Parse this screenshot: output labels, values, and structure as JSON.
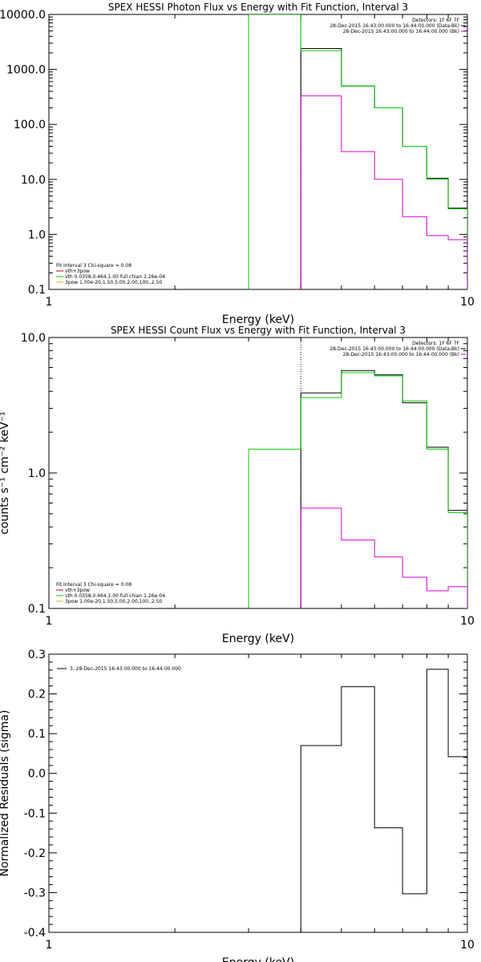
{
  "chart_data": [
    {
      "type": "line",
      "title": "SPEX HESSI Photon Flux vs Energy with Fit Function, Interval 3",
      "xlabel": "Energy (keV)",
      "ylabel": "",
      "x_scale": "log",
      "y_scale": "log",
      "xlim": [
        1,
        10
      ],
      "ylim": [
        0.1,
        10000
      ],
      "x_ticks": [
        "1",
        "10"
      ],
      "y_ticks": [
        "0.1",
        "1.0",
        "10.0",
        "100.0",
        "1000.0",
        "10000.0"
      ],
      "legend_top": [
        "Detectors: 1F 6F 7F",
        "28-Dec-2015 16:43:00.000 to 16:44:00.000 (Data-Bk)",
        "28-Dec-2015 16:43:00.000 to 16:44:00.000 (Bk)"
      ],
      "legend_bottom": [
        "Fit Interval 3   Chi-square = 0.08",
        "vth+3pow",
        "vth 0.0358,0.464,1.00  full chian 1.26e-04",
        "3pow 1.00e-20,1.50,5.00,2.00,100.,2.50"
      ],
      "series": [
        {
          "color": "#000000",
          "bins": [
            [
              4.0,
              5.0,
              2400
            ],
            [
              5.0,
              6.0,
              500
            ],
            [
              6.0,
              7.0,
              200
            ],
            [
              7.0,
              8.0,
              40
            ],
            [
              8.0,
              9.0,
              10.5
            ],
            [
              9.0,
              10.0,
              3.0
            ]
          ]
        },
        {
          "color": "#00cc00",
          "bins": [
            [
              3.0,
              4.0,
              10000
            ],
            [
              4.0,
              5.0,
              2200
            ],
            [
              5.0,
              6.0,
              500
            ],
            [
              6.0,
              7.0,
              200
            ],
            [
              7.0,
              8.0,
              40
            ],
            [
              8.0,
              9.0,
              10
            ],
            [
              9.0,
              10.0,
              2.9
            ]
          ]
        },
        {
          "color": "#dd00dd",
          "bins": [
            [
              4.0,
              5.0,
              330
            ],
            [
              5.0,
              6.0,
              32
            ],
            [
              6.0,
              7.0,
              10
            ],
            [
              7.0,
              8.0,
              2.1
            ],
            [
              8.0,
              9.0,
              0.95
            ],
            [
              9.0,
              10.0,
              0.8
            ]
          ]
        }
      ],
      "dotted_x": 4.0
    },
    {
      "type": "line",
      "title": "SPEX HESSI Count Flux vs Energy with Fit Function, Interval 3",
      "xlabel": "Energy (keV)",
      "ylabel": "counts s⁻¹ cm⁻² keV⁻¹",
      "x_scale": "log",
      "y_scale": "log",
      "xlim": [
        1,
        10
      ],
      "ylim": [
        0.1,
        10
      ],
      "x_ticks": [
        "1",
        "10"
      ],
      "y_ticks": [
        "0.1",
        "1.0",
        "10.0"
      ],
      "legend_top": [
        "Detectors: 1F 6F 7F",
        "28-Dec-2015 16:43:00.000 to 16:44:00.000 (Data-Bk)",
        "28-Dec-2015 16:43:00.000 to 16:44:00.000 (Bk)"
      ],
      "legend_bottom": [
        "Fit Interval 3   Chi-square = 0.08",
        "vth+3pow",
        "vth 0.0358,0.464,1.00  full chian 1.26e-04",
        "3pow 1.00e-20,1.50,5.00,2.00,100.,2.50"
      ],
      "series": [
        {
          "color": "#000000",
          "bins": [
            [
              4.0,
              5.0,
              3.9
            ],
            [
              5.0,
              6.0,
              5.7
            ],
            [
              6.0,
              7.0,
              5.3
            ],
            [
              7.0,
              8.0,
              3.3
            ],
            [
              8.0,
              9.0,
              1.55
            ],
            [
              9.0,
              10.0,
              0.53
            ]
          ]
        },
        {
          "color": "#00cc00",
          "bins": [
            [
              3.0,
              4.0,
              1.5
            ],
            [
              4.0,
              5.0,
              3.6
            ],
            [
              5.0,
              6.0,
              5.5
            ],
            [
              6.0,
              7.0,
              5.2
            ],
            [
              7.0,
              8.0,
              3.4
            ],
            [
              8.0,
              9.0,
              1.5
            ],
            [
              9.0,
              10.0,
              0.51
            ]
          ]
        },
        {
          "color": "#dd00dd",
          "bins": [
            [
              4.0,
              5.0,
              0.55
            ],
            [
              5.0,
              6.0,
              0.32
            ],
            [
              6.0,
              7.0,
              0.24
            ],
            [
              7.0,
              8.0,
              0.17
            ],
            [
              8.0,
              9.0,
              0.135
            ],
            [
              9.0,
              10.0,
              0.145
            ]
          ]
        }
      ],
      "dotted_x": 4.0
    },
    {
      "type": "line",
      "title": "",
      "xlabel": "Energy (keV)",
      "ylabel": "Normalized Residuals (sigma)",
      "x_scale": "log",
      "y_scale": "linear",
      "xlim": [
        1,
        10
      ],
      "ylim": [
        -0.4,
        0.3
      ],
      "x_ticks": [
        "1",
        "10"
      ],
      "y_ticks": [
        "-0.4",
        "-0.3",
        "-0.2",
        "-0.1",
        "0.0",
        "0.1",
        "0.2",
        "0.3"
      ],
      "legend": [
        "3, 28-Dec-2015 16:43:00.000 to 16:44:00.000"
      ],
      "series": [
        {
          "color": "#000000",
          "bins": [
            [
              4.0,
              5.0,
              0.07
            ],
            [
              5.0,
              6.0,
              0.218
            ],
            [
              6.0,
              7.0,
              -0.137
            ],
            [
              7.0,
              8.0,
              -0.303
            ],
            [
              8.0,
              9.0,
              0.262
            ],
            [
              9.0,
              10.0,
              0.042
            ]
          ]
        }
      ]
    }
  ]
}
